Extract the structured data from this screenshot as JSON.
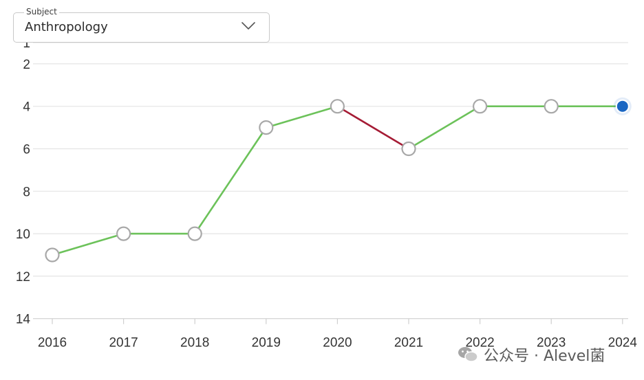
{
  "subject_select": {
    "label": "Subject",
    "value": "Anthropology"
  },
  "watermark": {
    "text": "公众号 · Alevel菌"
  },
  "colors": {
    "rise": "#6cc25a",
    "fall": "#a51c35",
    "current_point": "#1a66c2",
    "grid": "#e4e4e4",
    "tick_text": "#333333",
    "point_stroke": "#a8a8a8"
  },
  "chart_data": {
    "type": "line",
    "title": "",
    "xlabel": "",
    "ylabel": "",
    "x": [
      "2016",
      "2017",
      "2018",
      "2019",
      "2020",
      "2021",
      "2022",
      "2023",
      "2024"
    ],
    "values": [
      11,
      10,
      10,
      5,
      4,
      6,
      4,
      4,
      4
    ],
    "y_ticks": [
      1,
      2,
      4,
      6,
      8,
      10,
      12,
      14
    ],
    "ylim": [
      1,
      14
    ],
    "y_reversed": true,
    "grid": true,
    "segment_colors": "green where the value improves or holds, red where it worsens",
    "highlighted_point": "2024"
  }
}
